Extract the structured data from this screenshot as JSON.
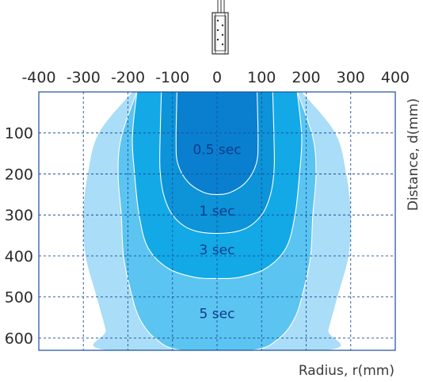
{
  "chart_data": {
    "type": "area",
    "title": "",
    "xlabel": "Radius, r(mm)",
    "ylabel": "Distance, d(mm)",
    "x_ticks": [
      "-400",
      "-300",
      "-200",
      "-100",
      "0",
      "100",
      "200",
      "300",
      "400"
    ],
    "y_ticks": [
      "100",
      "200",
      "300",
      "400",
      "500",
      "600"
    ],
    "xlim": [
      -400,
      400
    ],
    "ylim": [
      0,
      630
    ],
    "y_axis_direction": "down",
    "x_axis_position": "top",
    "grid": true,
    "colors": {
      "0.5 sec": "#0a7fcf",
      "1 sec": "#12a9e6",
      "3 sec": "#5bc4f1",
      "5 sec": "#a9ddf8",
      "grid": "#1b4e9e",
      "label": "#0d3d8c"
    },
    "series": [
      {
        "name": "0.5 sec",
        "label_position": {
          "x": 0,
          "d": 140
        },
        "outline": [
          {
            "r": -90,
            "d": 0
          },
          {
            "r": -92,
            "d": 120
          },
          {
            "r": -88,
            "d": 175
          },
          {
            "r": -65,
            "d": 220
          },
          {
            "r": -30,
            "d": 245
          },
          {
            "r": 0,
            "d": 250
          },
          {
            "r": 30,
            "d": 245
          },
          {
            "r": 65,
            "d": 220
          },
          {
            "r": 88,
            "d": 175
          },
          {
            "r": 92,
            "d": 120
          },
          {
            "r": 90,
            "d": 0
          }
        ]
      },
      {
        "name": "1 sec",
        "label_position": {
          "x": 0,
          "d": 290
        },
        "outline": [
          {
            "r": -125,
            "d": 0
          },
          {
            "r": -128,
            "d": 120
          },
          {
            "r": -128,
            "d": 190
          },
          {
            "r": -120,
            "d": 250
          },
          {
            "r": -100,
            "d": 300
          },
          {
            "r": -60,
            "d": 335
          },
          {
            "r": 0,
            "d": 345
          },
          {
            "r": 60,
            "d": 335
          },
          {
            "r": 100,
            "d": 300
          },
          {
            "r": 120,
            "d": 250
          },
          {
            "r": 128,
            "d": 190
          },
          {
            "r": 128,
            "d": 120
          },
          {
            "r": 125,
            "d": 0
          }
        ]
      },
      {
        "name": "3 sec",
        "label_position": {
          "x": 0,
          "d": 385
        },
        "outline": [
          {
            "r": -180,
            "d": 0
          },
          {
            "r": -190,
            "d": 110
          },
          {
            "r": -185,
            "d": 200
          },
          {
            "r": -175,
            "d": 300
          },
          {
            "r": -155,
            "d": 380
          },
          {
            "r": -110,
            "d": 430
          },
          {
            "r": -50,
            "d": 452
          },
          {
            "r": 0,
            "d": 455
          },
          {
            "r": 50,
            "d": 452
          },
          {
            "r": 110,
            "d": 430
          },
          {
            "r": 155,
            "d": 380
          },
          {
            "r": 175,
            "d": 300
          },
          {
            "r": 185,
            "d": 200
          },
          {
            "r": 190,
            "d": 110
          },
          {
            "r": 180,
            "d": 0
          }
        ]
      },
      {
        "name": "5 sec",
        "label_position": {
          "x": 0,
          "d": 540
        },
        "outline": [
          {
            "r": -180,
            "d": 0
          },
          {
            "r": -215,
            "d": 110
          },
          {
            "r": -222,
            "d": 200
          },
          {
            "r": -215,
            "d": 300
          },
          {
            "r": -210,
            "d": 400
          },
          {
            "r": -195,
            "d": 480
          },
          {
            "r": -175,
            "d": 550
          },
          {
            "r": -140,
            "d": 600
          },
          {
            "r": -80,
            "d": 630
          },
          {
            "r": 80,
            "d": 630
          },
          {
            "r": 140,
            "d": 600
          },
          {
            "r": 175,
            "d": 550
          },
          {
            "r": 195,
            "d": 480
          },
          {
            "r": 210,
            "d": 400
          },
          {
            "r": 215,
            "d": 300
          },
          {
            "r": 222,
            "d": 200
          },
          {
            "r": 215,
            "d": 110
          },
          {
            "r": 180,
            "d": 0
          }
        ]
      },
      {
        "name": "outer envelope",
        "outline": [
          {
            "r": -190,
            "d": 0
          },
          {
            "r": -265,
            "d": 100
          },
          {
            "r": -290,
            "d": 200
          },
          {
            "r": -300,
            "d": 300
          },
          {
            "r": -295,
            "d": 400
          },
          {
            "r": -270,
            "d": 500
          },
          {
            "r": -250,
            "d": 580
          },
          {
            "r": -240,
            "d": 630
          },
          {
            "r": 240,
            "d": 630
          },
          {
            "r": 250,
            "d": 580
          },
          {
            "r": 270,
            "d": 500
          },
          {
            "r": 295,
            "d": 400
          },
          {
            "r": 300,
            "d": 300
          },
          {
            "r": 290,
            "d": 200
          },
          {
            "r": 265,
            "d": 100
          },
          {
            "r": 190,
            "d": 0
          }
        ]
      }
    ]
  }
}
